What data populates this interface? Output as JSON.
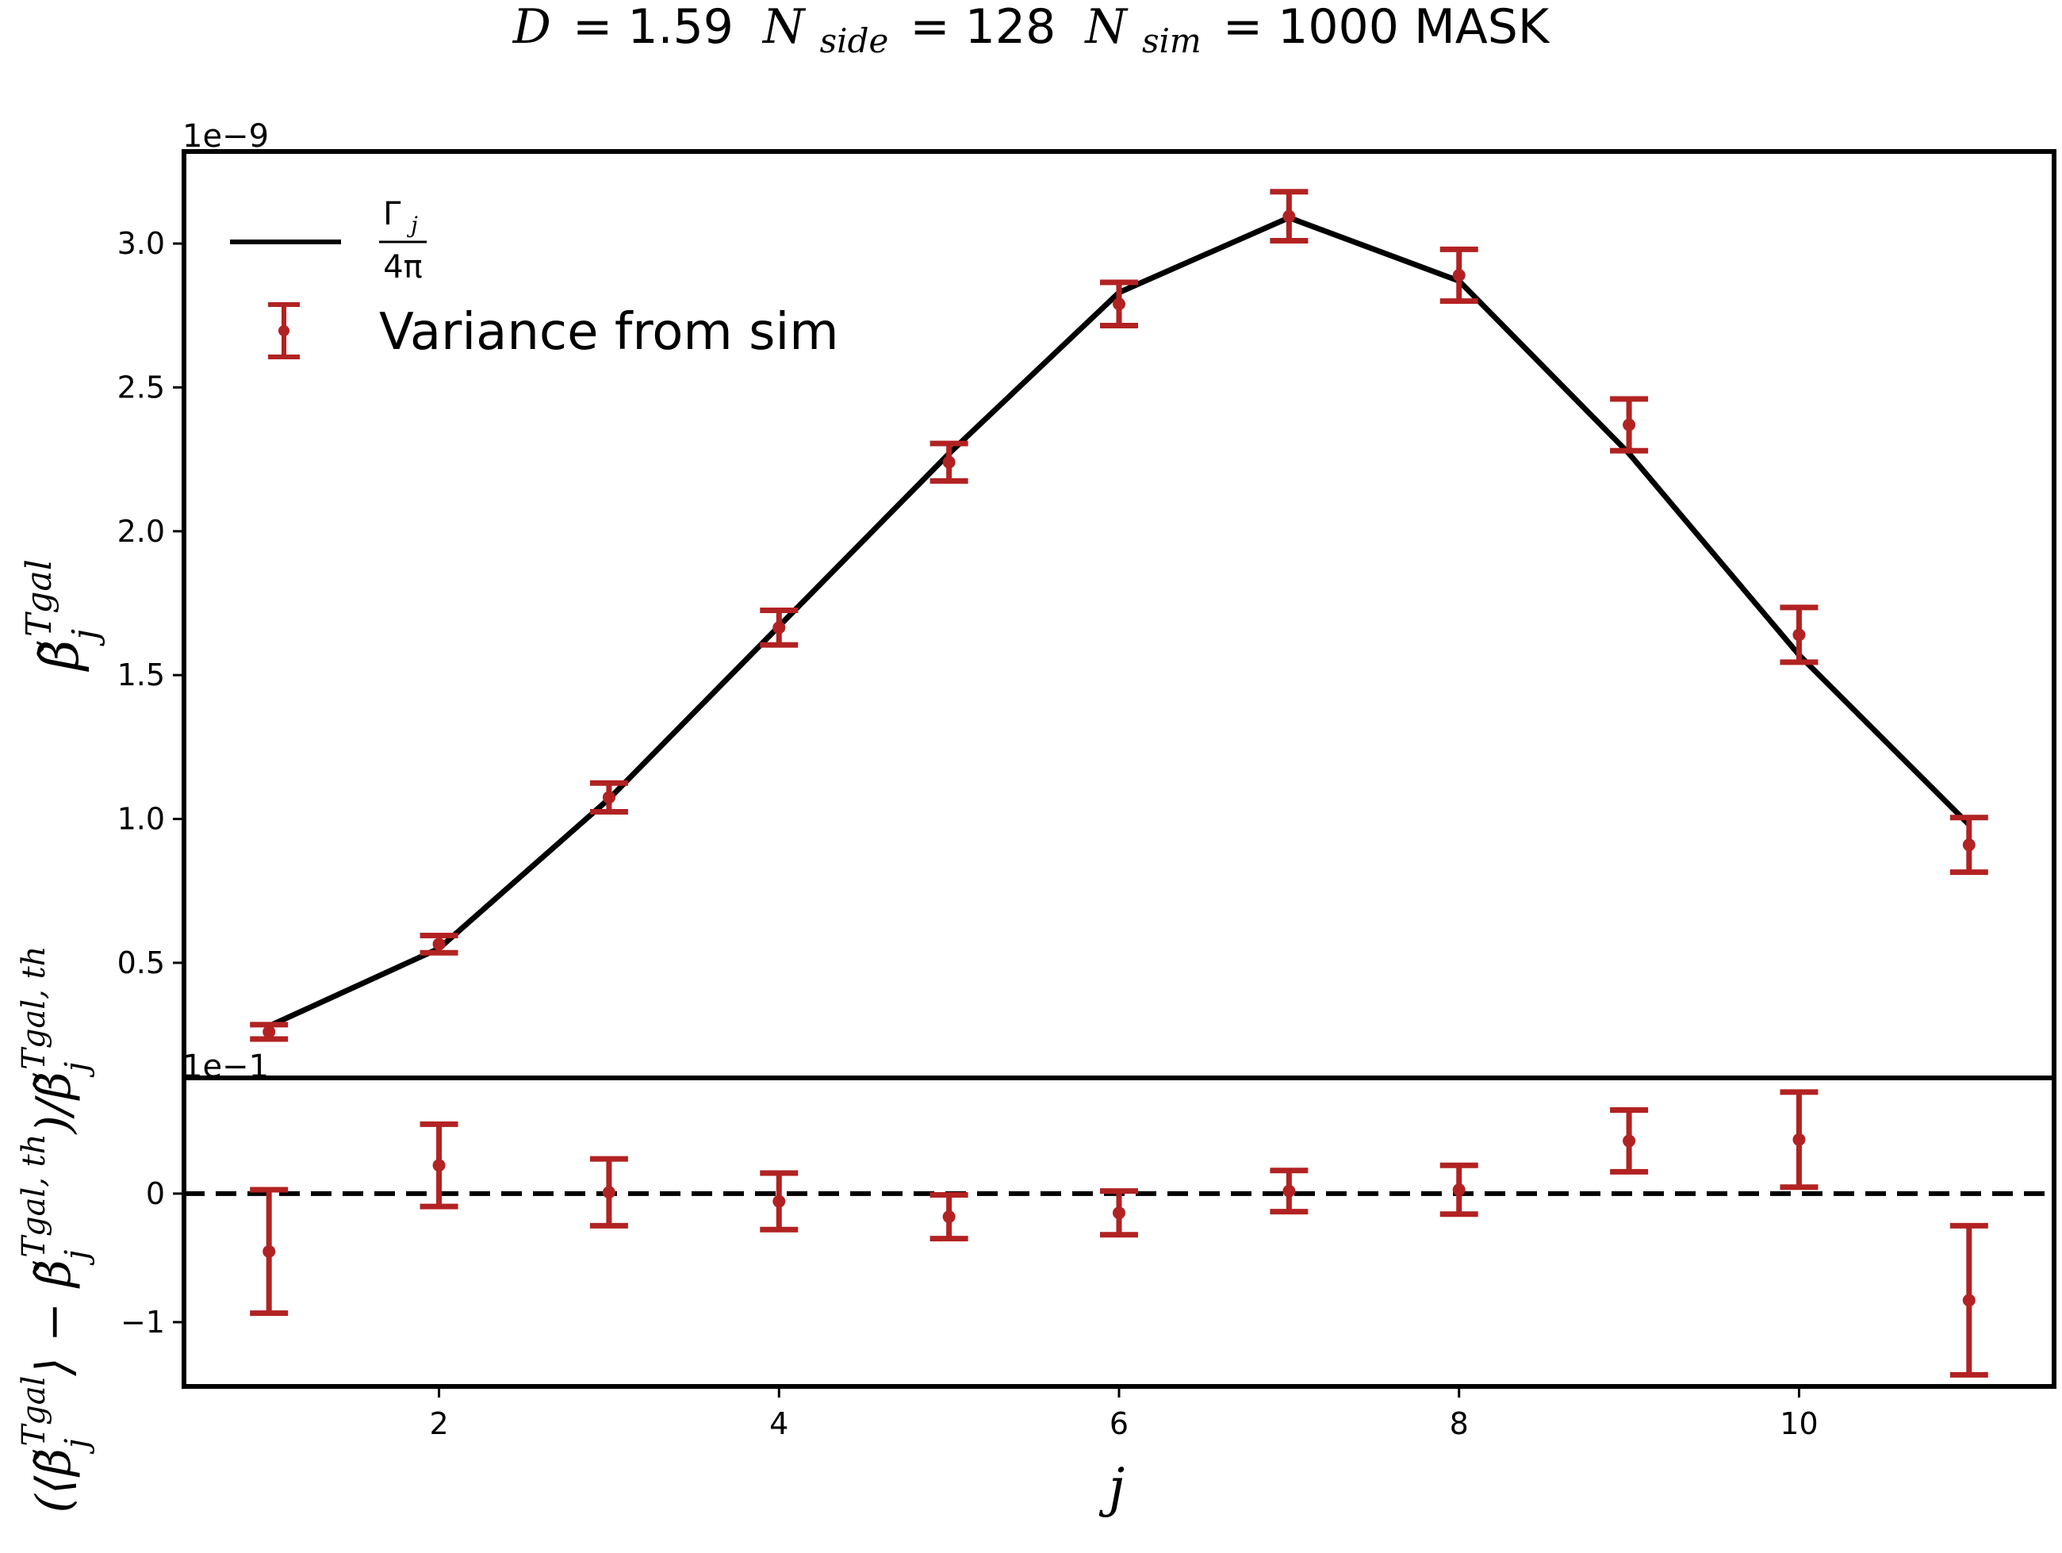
{
  "figure": {
    "title_D": "D",
    "title_D_value": "= 1.59",
    "title_N": "N",
    "title_side_sub": "side",
    "title_side_value": "= 128",
    "title_sim_sub": "sim",
    "title_sim_value": "= 1000 MASK"
  },
  "colors": {
    "theory_line": "#000000",
    "sim_points": "#b22222",
    "zero_line": "#000000"
  },
  "chart_data": [
    {
      "type": "line",
      "panel": "top",
      "offset_text": "1e−9",
      "ylabel": "β̃ⱼ^Tgal",
      "xlim": [
        0.5,
        11.5
      ],
      "ylim": [
        0.1,
        3.32
      ],
      "yticks": [
        0.5,
        1.0,
        1.5,
        2.0,
        2.5,
        3.0
      ],
      "ytick_labels": [
        "0.5",
        "1.0",
        "1.5",
        "2.0",
        "2.5",
        "3.0"
      ],
      "legend_position": "top-left",
      "series": [
        {
          "name": "Γⱼ / 4π",
          "legend_num": "Γ",
          "legend_sub": "j",
          "legend_den": "4π",
          "kind": "line",
          "x": [
            1,
            2,
            3,
            4,
            5,
            6,
            7,
            8,
            9,
            10,
            11
          ],
          "y": [
            0.28,
            0.55,
            1.07,
            1.67,
            2.27,
            2.83,
            3.09,
            2.87,
            2.27,
            1.57,
            0.98
          ]
        },
        {
          "name": "Variance from sim",
          "kind": "errorbar",
          "x": [
            1,
            2,
            3,
            4,
            5,
            6,
            7,
            8,
            9,
            10,
            11
          ],
          "y": [
            0.26,
            0.565,
            1.075,
            1.665,
            2.24,
            2.79,
            3.095,
            2.89,
            2.37,
            1.64,
            0.91
          ],
          "yerr": [
            0.025,
            0.03,
            0.05,
            0.06,
            0.065,
            0.075,
            0.085,
            0.09,
            0.09,
            0.095,
            0.095
          ]
        }
      ]
    },
    {
      "type": "scatter",
      "panel": "bottom",
      "offset_text": "1e−1",
      "ylabel": "(⟨β̃ⱼ^Tgal⟩ − β̃ⱼ^Tgal,th)/β̃ⱼ^Tgal,th",
      "xlabel": "j",
      "xlim": [
        0.5,
        11.5
      ],
      "ylim": [
        -1.5,
        0.9
      ],
      "xticks": [
        2,
        4,
        6,
        8,
        10
      ],
      "xtick_labels": [
        "2",
        "4",
        "6",
        "8",
        "10"
      ],
      "yticks": [
        -1,
        0
      ],
      "ytick_labels": [
        "−1",
        "0"
      ],
      "reference_line": {
        "y": 0,
        "style": "dashed"
      },
      "series": [
        {
          "kind": "errorbar",
          "x": [
            1,
            2,
            3,
            4,
            5,
            6,
            7,
            8,
            9,
            10,
            11
          ],
          "y": [
            -0.45,
            0.22,
            0.01,
            -0.06,
            -0.18,
            -0.15,
            0.02,
            0.03,
            0.41,
            0.42,
            -0.83
          ],
          "yerr": [
            0.48,
            0.32,
            0.26,
            0.22,
            0.17,
            0.17,
            0.16,
            0.19,
            0.24,
            0.37,
            0.58
          ]
        }
      ]
    }
  ]
}
